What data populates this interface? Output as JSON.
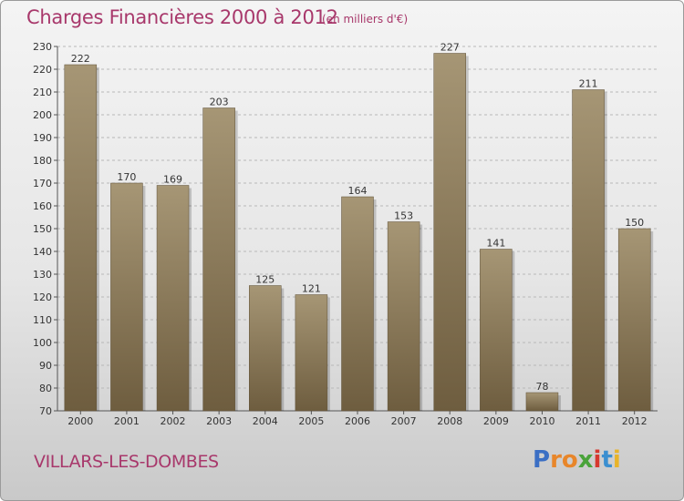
{
  "header": {
    "title": "Charges Financières 2000 à 2012",
    "subtitle": "(en milliers d'€)"
  },
  "footer": {
    "commune": "VILLARS-LES-DOMBES",
    "logo_letters": [
      {
        "ch": "P",
        "color": "#3b6fc4"
      },
      {
        "ch": "r",
        "color": "#e8862a"
      },
      {
        "ch": "o",
        "color": "#e8862a"
      },
      {
        "ch": "x",
        "color": "#4aa33a"
      },
      {
        "ch": "i",
        "color": "#d6382f"
      },
      {
        "ch": "t",
        "color": "#3b8fd0"
      },
      {
        "ch": "i",
        "color": "#e8b42a"
      }
    ]
  },
  "colors": {
    "bar_top": "#a69675",
    "bar_bottom": "#6e5d3f",
    "grid": "#b8b8b8",
    "accent": "#a8386b"
  },
  "chart_data": {
    "type": "bar",
    "title": "Charges Financières 2000 à 2012",
    "subtitle": "(en milliers d'€)",
    "categories": [
      "2000",
      "2001",
      "2002",
      "2003",
      "2004",
      "2005",
      "2006",
      "2007",
      "2008",
      "2009",
      "2010",
      "2011",
      "2012"
    ],
    "values": [
      222,
      170,
      169,
      203,
      125,
      121,
      164,
      153,
      227,
      141,
      78,
      211,
      150
    ],
    "ylim": [
      70,
      230
    ],
    "yticks": [
      70,
      80,
      90,
      100,
      110,
      120,
      130,
      140,
      150,
      160,
      170,
      180,
      190,
      200,
      210,
      220,
      230
    ],
    "grid": true
  }
}
